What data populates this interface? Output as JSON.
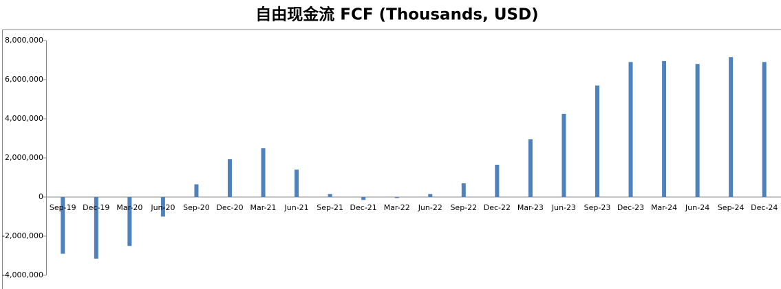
{
  "chart_data": {
    "type": "bar",
    "title": "自由现金流 FCF (Thousands, USD)",
    "categories": [
      "Sep-19",
      "Dec-19",
      "Mar-20",
      "Jun-20",
      "Sep-20",
      "Dec-20",
      "Mar-21",
      "Jun-21",
      "Sep-21",
      "Dec-21",
      "Mar-22",
      "Jun-22",
      "Sep-22",
      "Dec-22",
      "Mar-23",
      "Jun-23",
      "Sep-23",
      "Dec-23",
      "Mar-24",
      "Jun-24",
      "Sep-24",
      "Dec-24"
    ],
    "values": [
      -2900000,
      -3150000,
      -2500000,
      -1000000,
      650000,
      1930000,
      2490000,
      1400000,
      150000,
      -150000,
      -50000,
      150000,
      700000,
      1650000,
      2950000,
      4250000,
      5700000,
      6900000,
      6950000,
      6800000,
      7150000,
      6900000
    ],
    "color": "#4f81bd",
    "ylim": [
      -4000000,
      8000000
    ],
    "yticks": [
      {
        "value": -4000000,
        "label": "-4,000,000"
      },
      {
        "value": -2000000,
        "label": "-2,000,000"
      },
      {
        "value": 0,
        "label": "0"
      },
      {
        "value": 2000000,
        "label": "2,000,000"
      },
      {
        "value": 4000000,
        "label": "4,000,000"
      },
      {
        "value": 6000000,
        "label": "6,000,000"
      },
      {
        "value": 8000000,
        "label": "8,000,000"
      }
    ],
    "grid": false
  }
}
